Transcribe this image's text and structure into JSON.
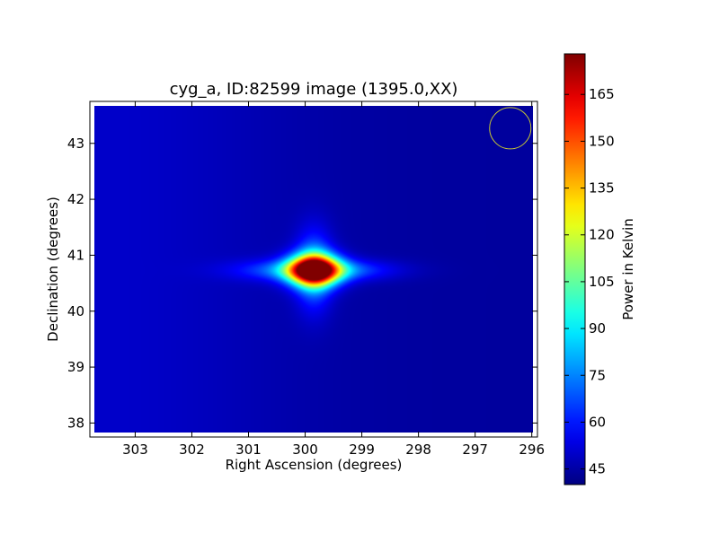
{
  "chart_data": {
    "type": "heatmap",
    "title": "cyg_a, ID:82599 image (1395.0,XX)",
    "xlabel": "Right Ascension (degrees)",
    "ylabel": "Declination (degrees)",
    "xlim": [
      303.8,
      295.9
    ],
    "ylim": [
      37.75,
      43.75
    ],
    "x_ticks": [
      {
        "value": 303,
        "label": "303"
      },
      {
        "value": 302,
        "label": "302"
      },
      {
        "value": 301,
        "label": "301"
      },
      {
        "value": 300,
        "label": "300"
      },
      {
        "value": 299,
        "label": "299"
      },
      {
        "value": 298,
        "label": "298"
      },
      {
        "value": 297,
        "label": "297"
      },
      {
        "value": 296,
        "label": "296"
      }
    ],
    "y_ticks": [
      {
        "value": 38,
        "label": "38"
      },
      {
        "value": 39,
        "label": "39"
      },
      {
        "value": 40,
        "label": "40"
      },
      {
        "value": 41,
        "label": "41"
      },
      {
        "value": 42,
        "label": "42"
      },
      {
        "value": 43,
        "label": "43"
      }
    ],
    "colorbar": {
      "label": "Power in Kelvin",
      "range": [
        40,
        178
      ],
      "ticks": [
        {
          "value": 45,
          "label": "45"
        },
        {
          "value": 60,
          "label": "60"
        },
        {
          "value": 75,
          "label": "75"
        },
        {
          "value": 90,
          "label": "90"
        },
        {
          "value": 105,
          "label": "105"
        },
        {
          "value": 120,
          "label": "120"
        },
        {
          "value": 135,
          "label": "135"
        },
        {
          "value": 150,
          "label": "150"
        },
        {
          "value": 165,
          "label": "165"
        }
      ]
    },
    "source": {
      "ra": 299.85,
      "dec": 40.74,
      "peak": 176
    },
    "background_level": 44,
    "beam_marker": {
      "ra": 296.38,
      "dec": 43.27,
      "color": "#c8c832"
    },
    "colormap": "jet"
  }
}
